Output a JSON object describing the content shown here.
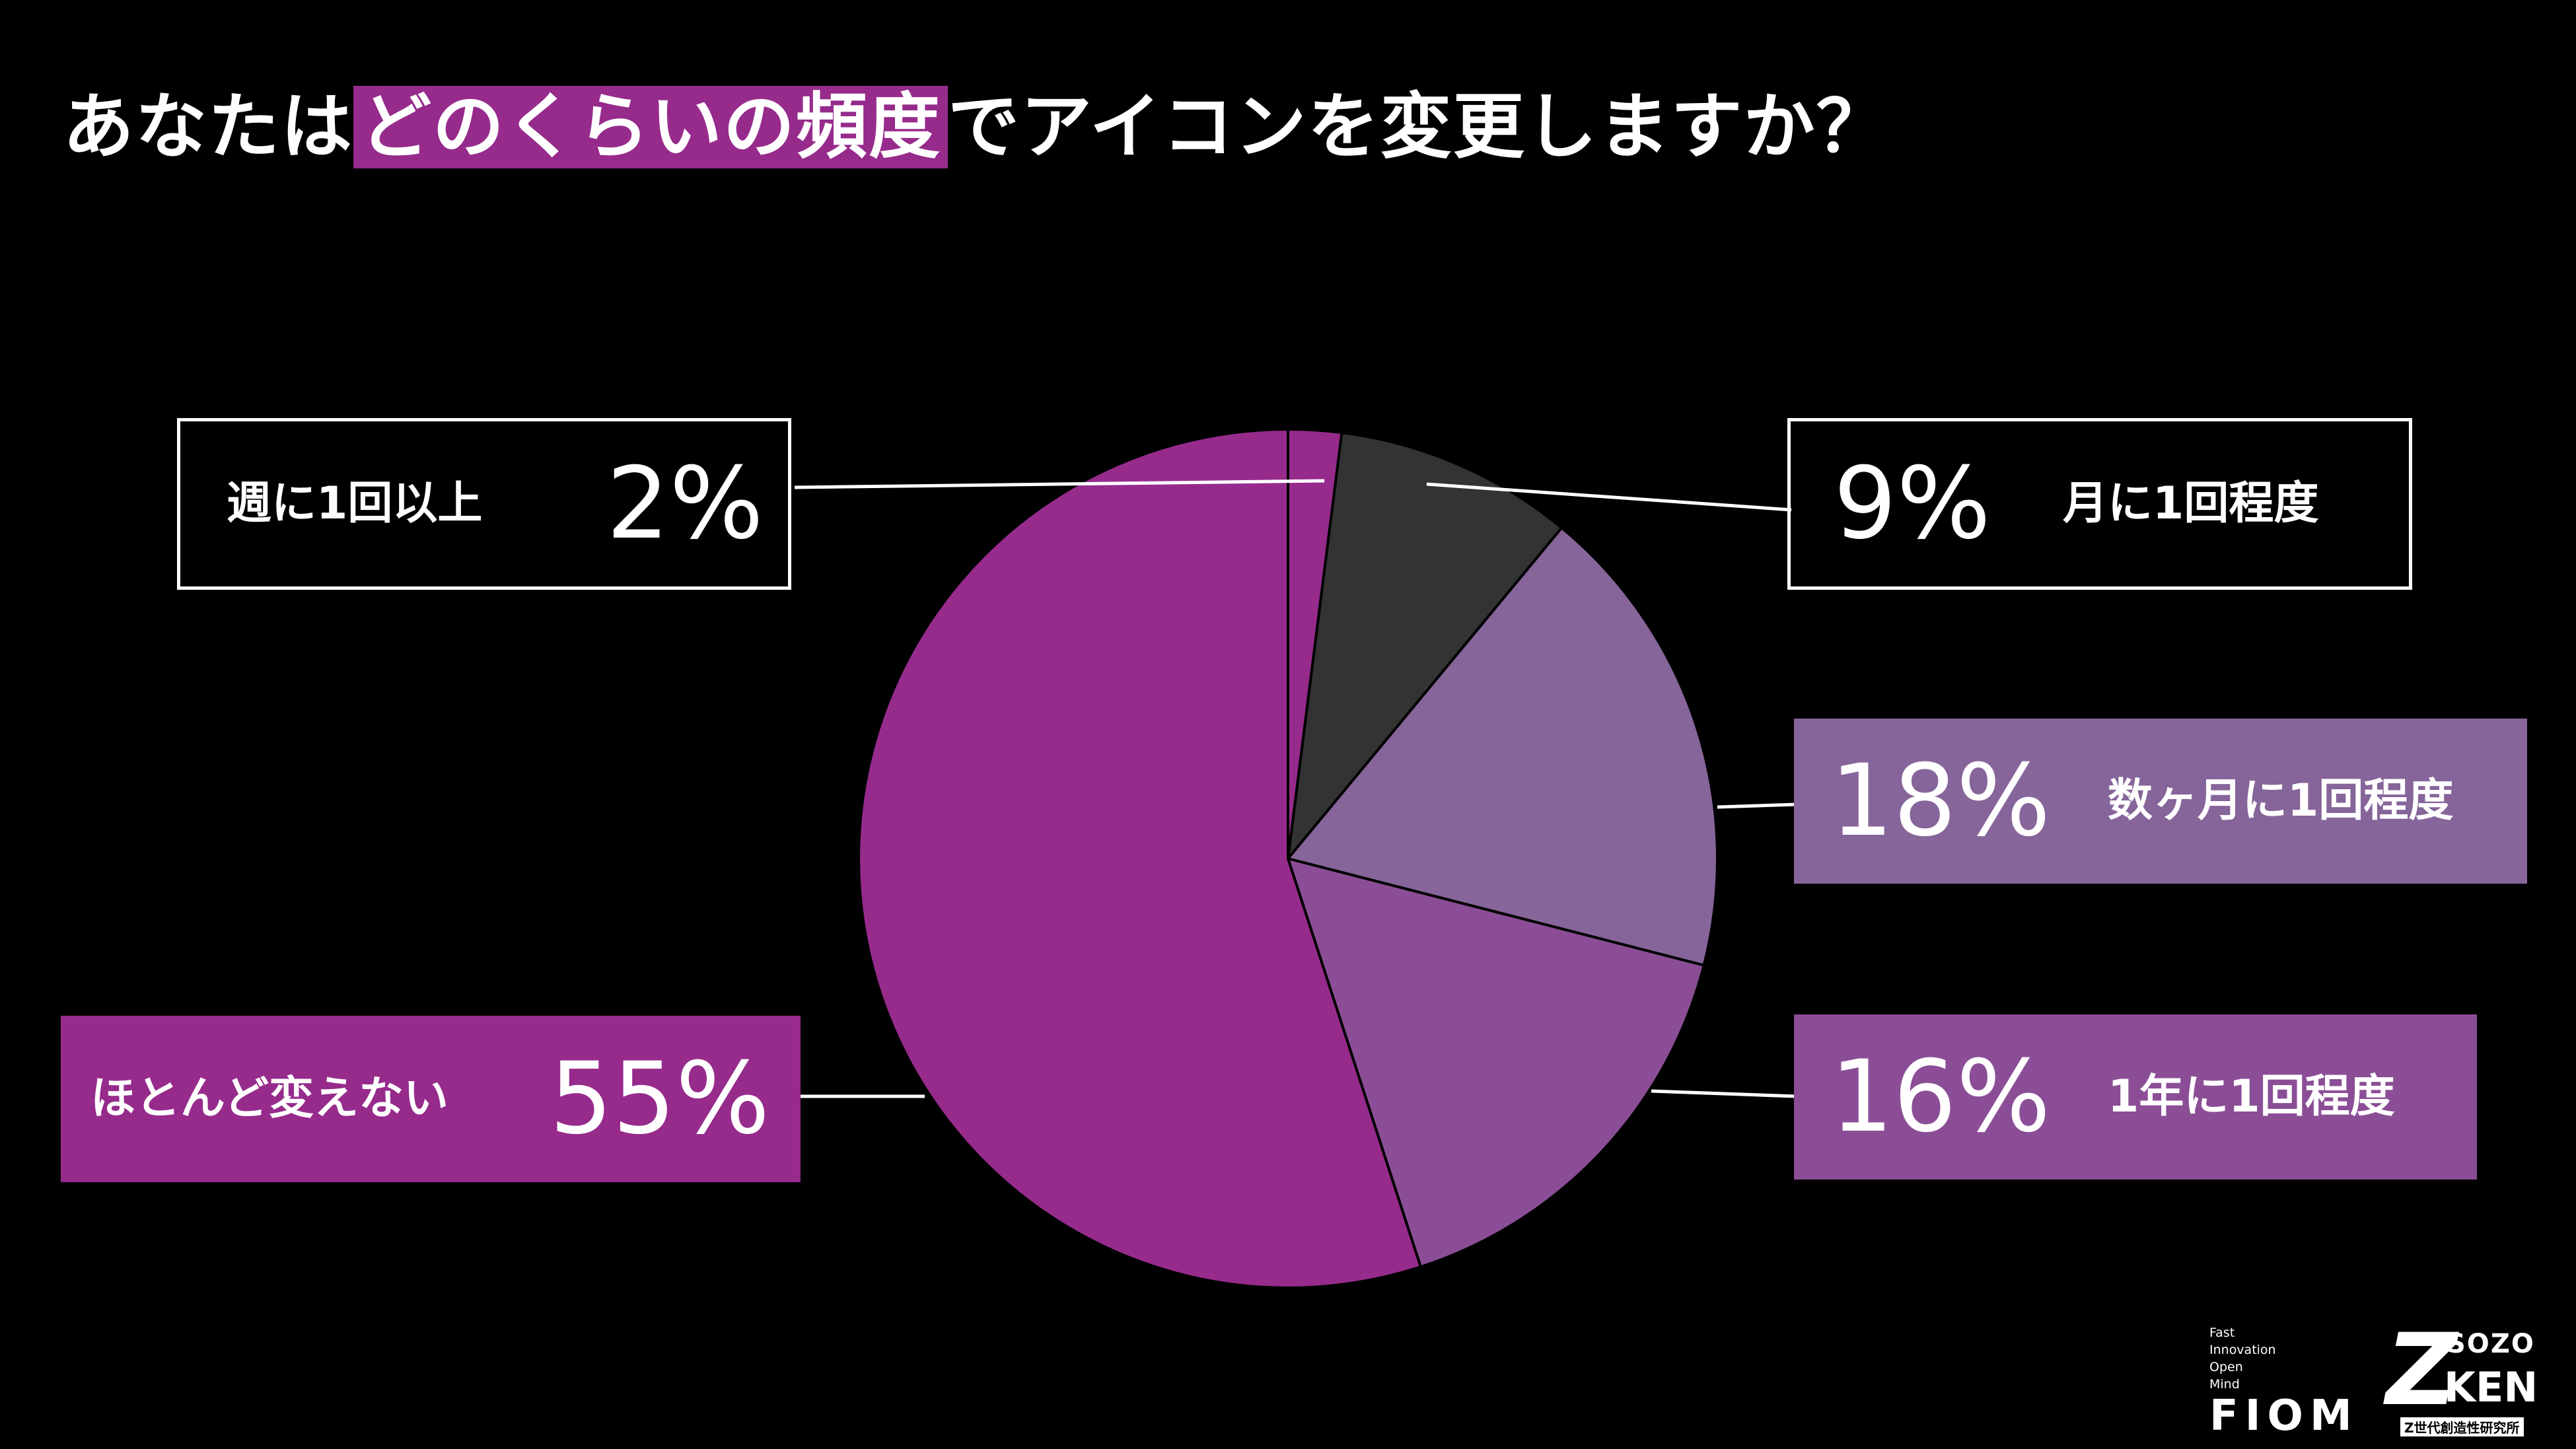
{
  "title": {
    "pre": "あなたは",
    "highlight": "どのくらいの頻度",
    "post": "でアイコンを変更しますか？"
  },
  "colors": {
    "background": "#000000",
    "accent": "#962b8c",
    "weekly": "#962b8c",
    "monthly": "#333333",
    "several_months": "#86659a",
    "yearly": "#8b4e96",
    "never": "#962b8c"
  },
  "chart_data": {
    "type": "pie",
    "title": "あなたはどのくらいの頻度でアイコンを変更しますか？",
    "unit": "%",
    "start": "12 o'clock, clockwise",
    "slices": [
      {
        "label": "週に1回以上",
        "value": 2,
        "display": "2%",
        "color": "#962b8c"
      },
      {
        "label": "月に1回程度",
        "value": 9,
        "display": "9%",
        "color": "#333333"
      },
      {
        "label": "数ヶ月に1回程度",
        "value": 18,
        "display": "18%",
        "color": "#86659a"
      },
      {
        "label": "1年に1回程度",
        "value": 16,
        "display": "16%",
        "color": "#8b4e96"
      },
      {
        "label": "ほとんど変えない",
        "value": 55,
        "display": "55%",
        "color": "#962b8c"
      }
    ]
  },
  "logos": {
    "fiom": {
      "tagline": [
        "Fast",
        "Innovation",
        "Open",
        "Mind"
      ],
      "word": "FIOM"
    },
    "zken": {
      "mark": "Z",
      "top": "SOZO",
      "bottom": "KEN",
      "sub": "Z世代創造性研究所"
    }
  }
}
